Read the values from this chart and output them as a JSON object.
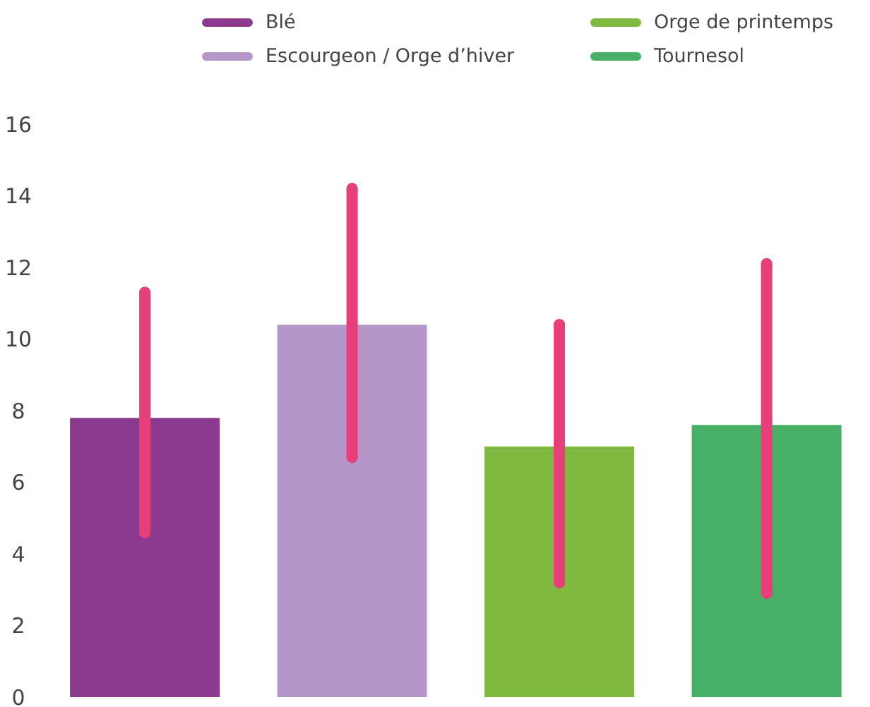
{
  "chart_data": {
    "type": "bar",
    "categories": [
      null,
      null,
      null,
      null
    ],
    "stacked": true,
    "series": [
      {
        "name": "Blé",
        "color": "#8b3a8f",
        "values": [
          7.8,
          null,
          null,
          null
        ],
        "errors": [
          [
            4.6,
            11.3
          ],
          null,
          null,
          null
        ]
      },
      {
        "name": "Escourgeon / Orge d’hiver",
        "color": "#b497c8",
        "values": [
          null,
          10.4,
          null,
          null
        ],
        "errors": [
          null,
          [
            6.7,
            14.2
          ],
          null,
          null
        ]
      },
      {
        "name": "Orge de printemps",
        "color": "#80b940",
        "values": [
          null,
          null,
          7.0,
          null
        ],
        "errors": [
          null,
          null,
          [
            3.2,
            10.4
          ],
          null
        ]
      },
      {
        "name": "Tournesol",
        "color": "#46b067",
        "values": [
          null,
          null,
          null,
          7.6
        ],
        "errors": [
          null,
          null,
          null,
          [
            2.9,
            12.1
          ]
        ]
      }
    ],
    "ylim": [
      0,
      16
    ],
    "yticks": [
      0,
      2,
      4,
      6,
      8,
      10,
      12,
      14,
      16
    ],
    "grid": false,
    "legend": "top",
    "tick_labels": "y"
  }
}
